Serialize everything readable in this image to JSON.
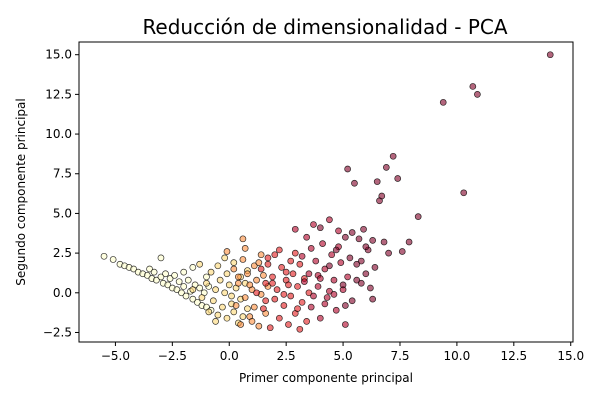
{
  "chart_data": {
    "type": "scatter",
    "title": "Reducción de dimensionalidad - PCA",
    "xlabel": "Primer componente principal",
    "ylabel": "Segundo componente principal",
    "xlim": [
      -6.6,
      15.1
    ],
    "ylim": [
      -3.1,
      15.8
    ],
    "xticks": [
      -5.0,
      -2.5,
      0.0,
      2.5,
      5.0,
      7.5,
      10.0,
      12.5,
      15.0
    ],
    "yticks": [
      -2.5,
      0.0,
      2.5,
      5.0,
      7.5,
      10.0,
      12.5,
      15.0
    ],
    "xtick_labels": [
      "−5.0",
      "−2.5",
      "0.0",
      "2.5",
      "5.0",
      "7.5",
      "10.0",
      "12.5",
      "15.0"
    ],
    "ytick_labels": [
      "−2.5",
      "0.0",
      "2.5",
      "5.0",
      "7.5",
      "10.0",
      "12.5",
      "15.0"
    ],
    "grid": false,
    "legend": false,
    "point_alpha": 0.6,
    "color_map": [
      "#ffffcc",
      "#fed976",
      "#fd8d3c",
      "#e31a1c",
      "#b10026",
      "#800026"
    ],
    "points": [
      [
        -5.5,
        2.3,
        0
      ],
      [
        -5.1,
        2.1,
        0
      ],
      [
        -4.8,
        1.8,
        0
      ],
      [
        -4.6,
        1.7,
        0
      ],
      [
        -4.4,
        1.6,
        0
      ],
      [
        -4.2,
        1.5,
        0
      ],
      [
        -4.0,
        1.3,
        0
      ],
      [
        -3.8,
        1.2,
        0
      ],
      [
        -3.6,
        1.1,
        0
      ],
      [
        -3.5,
        1.5,
        0
      ],
      [
        -3.4,
        0.9,
        0
      ],
      [
        -3.3,
        1.3,
        0
      ],
      [
        -3.2,
        0.8,
        0
      ],
      [
        -3.0,
        2.2,
        0
      ],
      [
        -3.0,
        1.0,
        0
      ],
      [
        -2.9,
        0.6,
        0
      ],
      [
        -2.8,
        1.2,
        0
      ],
      [
        -2.7,
        0.5,
        0
      ],
      [
        -2.6,
        0.9,
        0
      ],
      [
        -2.5,
        0.3,
        0
      ],
      [
        -2.4,
        1.1,
        0
      ],
      [
        -2.3,
        0.2,
        0
      ],
      [
        -2.2,
        0.7,
        0
      ],
      [
        -2.1,
        0.0,
        0
      ],
      [
        -2.0,
        1.3,
        0
      ],
      [
        -2.0,
        0.4,
        0
      ],
      [
        -1.9,
        -0.2,
        0
      ],
      [
        -1.8,
        0.8,
        0
      ],
      [
        -1.7,
        0.1,
        0
      ],
      [
        -1.6,
        -0.4,
        0
      ],
      [
        -1.6,
        1.6,
        0
      ],
      [
        -1.5,
        0.5,
        0
      ],
      [
        -1.4,
        -0.6,
        0
      ],
      [
        -1.3,
        0.3,
        0
      ],
      [
        -1.2,
        -0.8,
        0
      ],
      [
        -1.1,
        0.0,
        0
      ],
      [
        -1.0,
        1.0,
        0
      ],
      [
        -1.0,
        -0.9,
        0
      ],
      [
        -0.9,
        0.4,
        0
      ],
      [
        -0.8,
        -1.1,
        0
      ],
      [
        -1.6,
        0.2,
        1
      ],
      [
        -1.3,
        1.8,
        1
      ],
      [
        -1.2,
        -0.3,
        1
      ],
      [
        -1.0,
        0.6,
        1
      ],
      [
        -0.9,
        -1.2,
        1
      ],
      [
        -0.8,
        1.3,
        1
      ],
      [
        -0.7,
        -0.5,
        1
      ],
      [
        -0.6,
        0.2,
        1
      ],
      [
        -0.5,
        1.7,
        1
      ],
      [
        -0.5,
        -1.4,
        1
      ],
      [
        -0.4,
        0.8,
        1
      ],
      [
        -0.3,
        -0.9,
        1
      ],
      [
        -0.2,
        0.0,
        1
      ],
      [
        -0.1,
        1.2,
        1
      ],
      [
        -0.1,
        -1.6,
        1
      ],
      [
        0.0,
        0.5,
        1
      ],
      [
        0.1,
        -0.7,
        1
      ],
      [
        0.2,
        1.9,
        1
      ],
      [
        0.2,
        -1.2,
        1
      ],
      [
        0.3,
        0.3,
        1
      ],
      [
        0.4,
        -1.9,
        1
      ],
      [
        0.5,
        1.0,
        1
      ],
      [
        0.5,
        -0.4,
        1
      ],
      [
        0.6,
        -1.5,
        1
      ],
      [
        0.7,
        0.6,
        1
      ],
      [
        -0.6,
        -1.8,
        1
      ],
      [
        -0.2,
        2.2,
        1
      ],
      [
        0.1,
        -0.2,
        1
      ],
      [
        0.8,
        1.4,
        1
      ],
      [
        0.8,
        -1.0,
        1
      ],
      [
        -0.1,
        2.6,
        2
      ],
      [
        0.2,
        1.5,
        2
      ],
      [
        0.3,
        -0.8,
        2
      ],
      [
        0.4,
        0.6,
        2
      ],
      [
        0.5,
        -2.0,
        2
      ],
      [
        0.6,
        2.1,
        2
      ],
      [
        0.7,
        -0.3,
        2
      ],
      [
        0.8,
        1.2,
        2
      ],
      [
        0.9,
        -1.5,
        2
      ],
      [
        1.0,
        0.2,
        2
      ],
      [
        0.6,
        3.4,
        2
      ],
      [
        0.7,
        2.8,
        2
      ],
      [
        1.1,
        1.7,
        2
      ],
      [
        1.1,
        -0.9,
        2
      ],
      [
        1.2,
        0.8,
        2
      ],
      [
        1.3,
        -2.1,
        2
      ],
      [
        1.4,
        2.4,
        2
      ],
      [
        1.4,
        -0.1,
        2
      ],
      [
        1.5,
        1.1,
        2
      ],
      [
        1.6,
        -1.3,
        2
      ],
      [
        0.9,
        0.5,
        2
      ],
      [
        1.3,
        1.9,
        2
      ],
      [
        1.7,
        0.4,
        2
      ],
      [
        1.0,
        -1.8,
        2
      ],
      [
        0.4,
        1.0,
        2
      ],
      [
        1.2,
        0.0,
        3
      ],
      [
        1.4,
        1.5,
        3
      ],
      [
        1.5,
        -1.0,
        3
      ],
      [
        1.6,
        0.6,
        3
      ],
      [
        1.7,
        2.2,
        3
      ],
      [
        1.8,
        -2.2,
        3
      ],
      [
        1.9,
        1.0,
        3
      ],
      [
        2.0,
        -0.4,
        3
      ],
      [
        2.0,
        2.4,
        3
      ],
      [
        2.1,
        0.2,
        3
      ],
      [
        2.2,
        -1.6,
        3
      ],
      [
        2.3,
        1.6,
        3
      ],
      [
        2.4,
        -0.8,
        3
      ],
      [
        2.5,
        0.8,
        3
      ],
      [
        2.6,
        -2.0,
        3
      ],
      [
        2.7,
        2.0,
        3
      ],
      [
        2.7,
        -0.2,
        3
      ],
      [
        2.8,
        1.2,
        3
      ],
      [
        2.9,
        -1.3,
        3
      ],
      [
        3.0,
        0.4,
        3
      ],
      [
        3.1,
        -2.3,
        3
      ],
      [
        3.1,
        1.8,
        3
      ],
      [
        3.2,
        -0.6,
        3
      ],
      [
        3.3,
        0.9,
        3
      ],
      [
        3.4,
        -1.8,
        3
      ],
      [
        1.7,
        1.8,
        3
      ],
      [
        2.2,
        2.7,
        3
      ],
      [
        2.5,
        1.3,
        3
      ],
      [
        2.9,
        2.5,
        3
      ],
      [
        3.5,
        0.0,
        3
      ],
      [
        1.6,
        -0.5,
        3
      ],
      [
        2.4,
        -0.1,
        3
      ],
      [
        1.9,
        0.6,
        3
      ],
      [
        2.6,
        0.5,
        3
      ],
      [
        3.0,
        -1.0,
        3
      ],
      [
        2.9,
        4.0,
        4
      ],
      [
        3.2,
        2.3,
        4
      ],
      [
        3.4,
        3.5,
        4
      ],
      [
        3.5,
        1.2,
        4
      ],
      [
        3.6,
        -0.9,
        4
      ],
      [
        3.7,
        4.3,
        4
      ],
      [
        3.8,
        2.0,
        4
      ],
      [
        3.9,
        0.4,
        4
      ],
      [
        4.0,
        -1.6,
        4
      ],
      [
        4.1,
        3.1,
        4
      ],
      [
        4.2,
        1.5,
        4
      ],
      [
        4.3,
        -0.3,
        4
      ],
      [
        4.4,
        4.6,
        4
      ],
      [
        4.5,
        2.4,
        4
      ],
      [
        4.6,
        0.8,
        4
      ],
      [
        4.7,
        -1.1,
        4
      ],
      [
        4.8,
        3.9,
        4
      ],
      [
        4.9,
        1.9,
        4
      ],
      [
        5.0,
        0.2,
        4
      ],
      [
        5.1,
        -2.0,
        4
      ],
      [
        3.3,
        0.7,
        4
      ],
      [
        3.7,
        -0.2,
        4
      ],
      [
        4.2,
        -0.7,
        4
      ],
      [
        3.9,
        1.1,
        4
      ],
      [
        4.4,
        0.1,
        4
      ],
      [
        4.8,
        2.9,
        4
      ],
      [
        5.2,
        1.0,
        4
      ],
      [
        3.6,
        2.8,
        4
      ],
      [
        4.0,
        0.9,
        4
      ],
      [
        4.6,
        -0.1,
        4
      ],
      [
        4.0,
        4.1,
        5
      ],
      [
        4.7,
        2.7,
        5
      ],
      [
        5.1,
        3.5,
        5
      ],
      [
        5.2,
        7.8,
        5
      ],
      [
        5.3,
        2.2,
        5
      ],
      [
        5.4,
        3.8,
        5
      ],
      [
        5.5,
        6.9,
        5
      ],
      [
        5.6,
        0.8,
        5
      ],
      [
        5.7,
        3.4,
        5
      ],
      [
        5.8,
        2.0,
        5
      ],
      [
        5.9,
        4.0,
        5
      ],
      [
        6.0,
        1.2,
        5
      ],
      [
        6.1,
        2.7,
        5
      ],
      [
        6.2,
        0.3,
        5
      ],
      [
        6.3,
        3.3,
        5
      ],
      [
        6.4,
        1.6,
        5
      ],
      [
        6.5,
        7.0,
        5
      ],
      [
        6.6,
        5.8,
        5
      ],
      [
        6.7,
        6.1,
        5
      ],
      [
        6.8,
        3.2,
        5
      ],
      [
        6.9,
        7.9,
        5
      ],
      [
        7.0,
        2.5,
        5
      ],
      [
        7.2,
        8.6,
        5
      ],
      [
        7.4,
        7.2,
        5
      ],
      [
        7.6,
        2.6,
        5
      ],
      [
        7.9,
        3.2,
        5
      ],
      [
        8.3,
        4.8,
        5
      ],
      [
        9.4,
        12.0,
        5
      ],
      [
        10.3,
        6.3,
        5
      ],
      [
        10.7,
        13.0,
        5
      ],
      [
        10.9,
        12.5,
        5
      ],
      [
        14.1,
        15.0,
        5
      ],
      [
        5.0,
        0.5,
        5
      ],
      [
        5.4,
        -0.5,
        5
      ],
      [
        5.8,
        0.6,
        5
      ],
      [
        6.0,
        2.9,
        5
      ],
      [
        5.6,
        1.8,
        5
      ],
      [
        6.3,
        -0.4,
        5
      ],
      [
        4.4,
        1.7,
        5
      ],
      [
        5.1,
        -0.8,
        5
      ]
    ]
  }
}
